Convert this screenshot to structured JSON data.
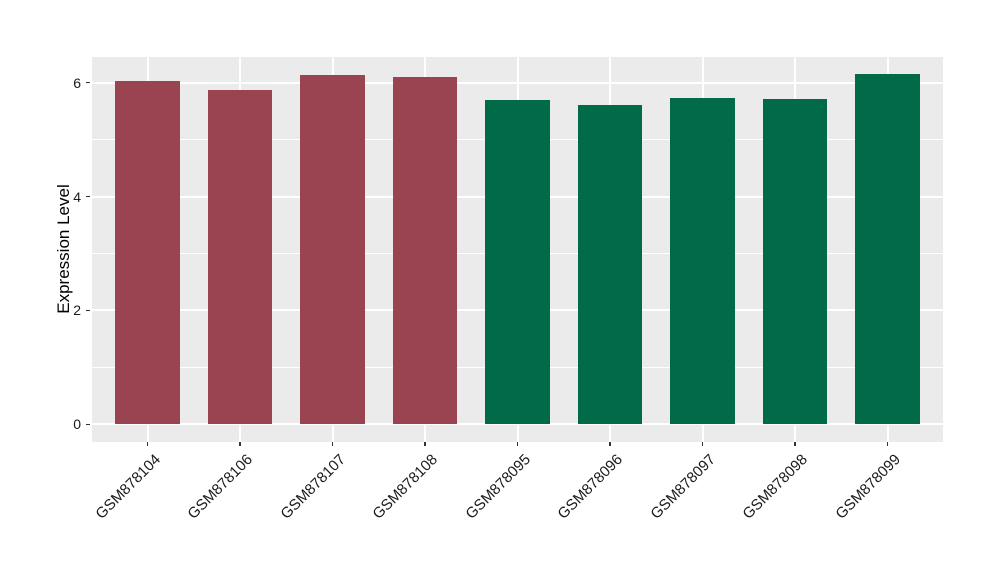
{
  "figure": {
    "background": "#FFFFFF",
    "panel_background": "#EBEBEB",
    "grid_color": "#FFFFFF",
    "tick_color": "#333333",
    "text_color": "#1A1A1A"
  },
  "chart_data": {
    "type": "bar",
    "title": "",
    "xlabel": "",
    "ylabel": "Expression Level",
    "categories": [
      "GSM878104",
      "GSM878106",
      "GSM878107",
      "GSM878108",
      "GSM878095",
      "GSM878096",
      "GSM878097",
      "GSM878098",
      "GSM878099"
    ],
    "values": [
      6.03,
      5.87,
      6.13,
      6.1,
      5.69,
      5.61,
      5.73,
      5.72,
      6.15
    ],
    "bar_colors": [
      "#9A4451",
      "#9A4451",
      "#9A4451",
      "#9A4451",
      "#016A49",
      "#016A49",
      "#016A49",
      "#016A49",
      "#016A49"
    ],
    "color_groups": {
      "maroon": "#9A4451",
      "green": "#016A49"
    },
    "y_ticks": [
      0,
      2,
      4,
      6
    ],
    "y_minor_ticks": [
      1,
      3,
      5
    ],
    "ylim": [
      -0.31,
      6.45
    ],
    "grid": true,
    "legend_position": "none",
    "x_label_angle": -45,
    "bar_rel_width": 0.7,
    "x_expand": 0.6
  }
}
